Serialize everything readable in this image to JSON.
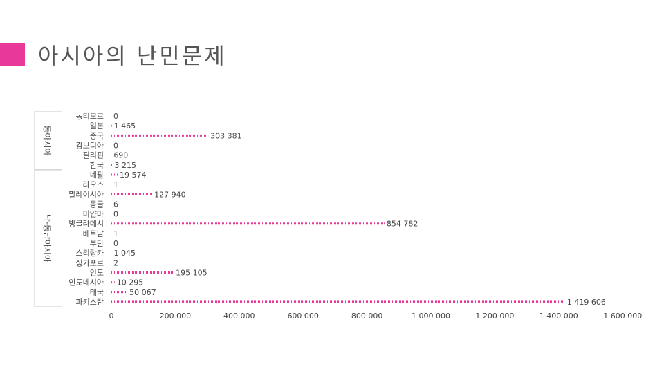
{
  "slide": {
    "title": "아시아의 난민문제",
    "accent_color": "#e8399a"
  },
  "chart_data": {
    "type": "bar",
    "orientation": "horizontal",
    "bar_color": "#e8399a",
    "bar_style": "dotted",
    "groups": [
      {
        "label": "동아시아",
        "categories": [
          "동티모르",
          "일본",
          "중국",
          "캄보디아",
          "필리핀",
          "한국"
        ]
      },
      {
        "label": "남·동남아시아",
        "categories": [
          "네팔",
          "라오스",
          "말레이시아",
          "몽골",
          "미얀마",
          "방글라데시",
          "베트남",
          "부탄",
          "스리랑카",
          "싱가포르",
          "인도",
          "인도네시아",
          "태국",
          "파키스탄"
        ]
      }
    ],
    "categories": [
      "동티모르",
      "일본",
      "중국",
      "캄보디아",
      "필리핀",
      "한국",
      "네팔",
      "라오스",
      "말레이시아",
      "몽골",
      "미얀마",
      "방글라데시",
      "베트남",
      "부탄",
      "스리랑카",
      "싱가포르",
      "인도",
      "인도네시아",
      "태국",
      "파키스탄"
    ],
    "values": [
      0,
      1465,
      303381,
      0,
      690,
      3215,
      19574,
      1,
      127940,
      6,
      0,
      854782,
      1,
      0,
      1045,
      2,
      195105,
      10295,
      50067,
      1419606
    ],
    "data_labels": [
      "0",
      "1 465",
      "303 381",
      "0",
      "690",
      "3 215",
      "19 574",
      "1",
      "127 940",
      "6",
      "0",
      "854 782",
      "1",
      "0",
      "1 045",
      "2",
      "195 105",
      "10 295",
      "50 067",
      "1 419 606"
    ],
    "xlim": [
      0,
      1600000
    ],
    "xticks": [
      0,
      200000,
      400000,
      600000,
      800000,
      1000000,
      1200000,
      1400000,
      1600000
    ],
    "xtick_labels": [
      "0",
      "200 000",
      "400 000",
      "600 000",
      "800 000",
      "1 000 000",
      "1 200 000",
      "1 400 000",
      "1 600 000"
    ],
    "title": "",
    "xlabel": "",
    "ylabel": "",
    "grid": false,
    "legend": "none"
  }
}
